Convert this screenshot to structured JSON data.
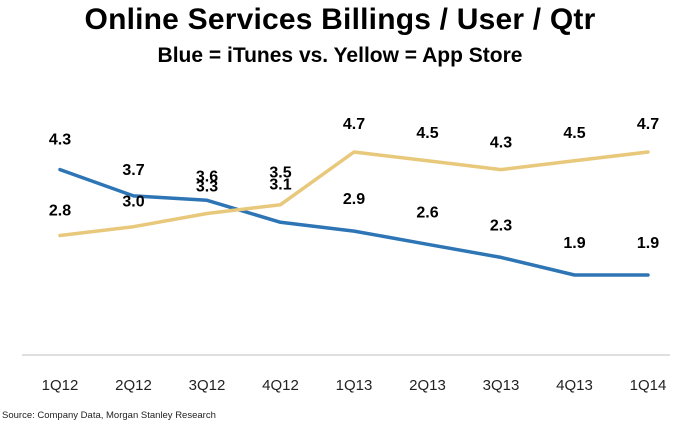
{
  "chart_data": {
    "type": "line",
    "title": "Online Services Billings / User / Qtr",
    "subtitle": "Blue = iTunes vs. Yellow = App Store",
    "categories": [
      "1Q12",
      "2Q12",
      "3Q12",
      "4Q12",
      "1Q13",
      "2Q13",
      "3Q13",
      "4Q13",
      "1Q14"
    ],
    "series": [
      {
        "color": "#2E75B6",
        "values": [
          4.3,
          3.7,
          3.6,
          3.1,
          2.9,
          2.6,
          2.3,
          1.9,
          1.9
        ],
        "labels": [
          "4.3",
          "3.7",
          "3.6",
          "3.1",
          "2.9",
          "2.6",
          "2.3",
          "1.9",
          "1.9"
        ]
      },
      {
        "color": "#E8C87A",
        "values": [
          2.8,
          3.0,
          3.3,
          3.5,
          4.7,
          4.5,
          4.3,
          4.5,
          4.7
        ],
        "labels": [
          "2.8",
          "3.0",
          "3.3",
          "3.5",
          "4.7",
          "4.5",
          "4.3",
          "4.5",
          "4.7"
        ]
      }
    ],
    "xlabel": "",
    "ylabel": "",
    "grid": false,
    "legend": "none"
  },
  "source": "Source: Company Data, Morgan Stanley Research"
}
